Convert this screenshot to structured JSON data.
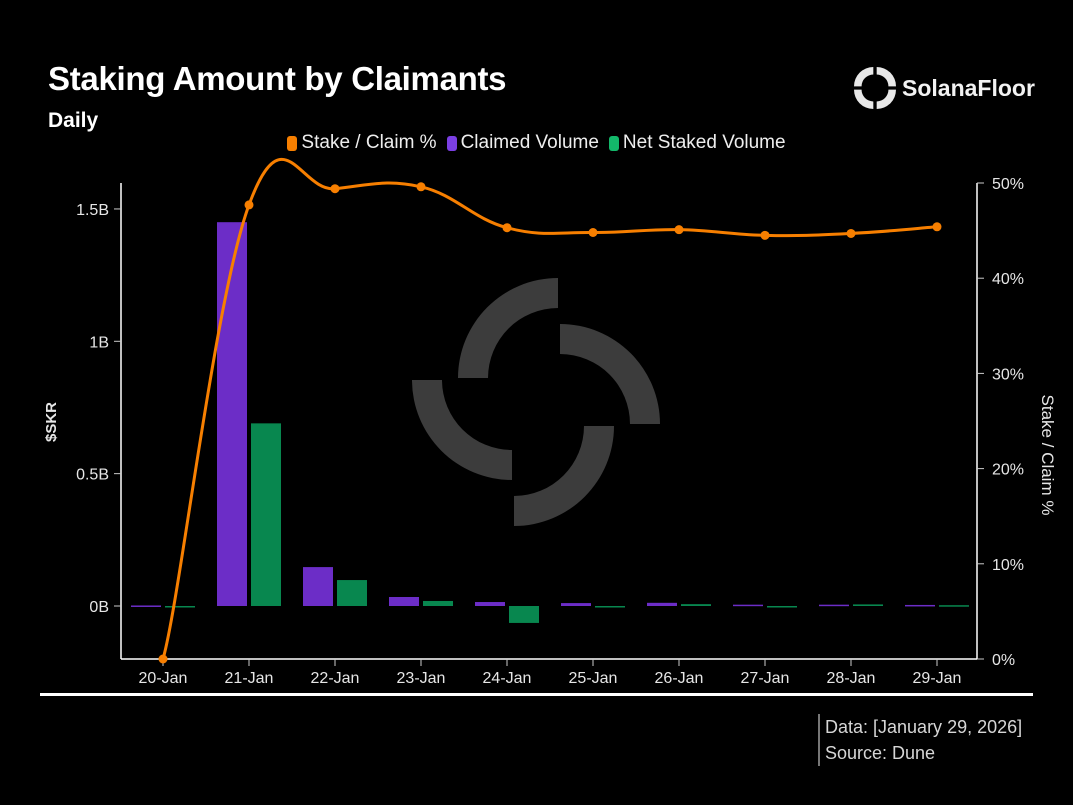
{
  "header": {
    "title": "Staking Amount by Claimants",
    "subtitle": "Daily",
    "brand": "SolanaFloor",
    "brand_icon": "solanafloor-logo-icon"
  },
  "legend": [
    {
      "label": "Stake / Claim %",
      "color": "#F77F00"
    },
    {
      "label": "Claimed Volume",
      "color": "#6C2DC7"
    },
    {
      "label": "Net Staked Volume",
      "color": "#08874F"
    }
  ],
  "footer": {
    "data_line": "Data: [January 29, 2026]",
    "source_line": "Source: Dune"
  },
  "colors": {
    "background": "#000000",
    "line": "#F77F00",
    "claimed": "#6C2DC7",
    "net": "#08874F",
    "watermark": "#3C3C3C"
  },
  "chart_data": {
    "type": "bar",
    "title": "Staking Amount by Claimants",
    "subtitle": "Daily",
    "categories": [
      "20-Jan",
      "21-Jan",
      "22-Jan",
      "23-Jan",
      "24-Jan",
      "25-Jan",
      "26-Jan",
      "27-Jan",
      "28-Jan",
      "29-Jan"
    ],
    "series": [
      {
        "name": "Claimed Volume",
        "type": "bar",
        "axis": "left",
        "unit": "B $SKR",
        "values": [
          0.002,
          1.45,
          0.147,
          0.034,
          0.015,
          0.011,
          0.012,
          0.005,
          0.005,
          0.004
        ]
      },
      {
        "name": "Net Staked Volume",
        "type": "bar",
        "axis": "left",
        "unit": "B $SKR",
        "values": [
          0.0,
          0.69,
          0.098,
          0.019,
          -0.064,
          -0.002,
          0.007,
          -0.003,
          0.006,
          0.003
        ]
      },
      {
        "name": "Stake / Claim %",
        "type": "line",
        "axis": "right",
        "unit": "%",
        "values": [
          0.0,
          47.7,
          49.4,
          49.6,
          45.3,
          44.8,
          45.1,
          44.5,
          44.7,
          45.4
        ]
      }
    ],
    "xlabel": "",
    "ylabel": "$SKR",
    "ylabel_right": "Stake / Claim %",
    "ylim": [
      -0.2,
      1.6
    ],
    "ylim_right": [
      0,
      50
    ],
    "yticks": [
      "0B",
      "0.5B",
      "1B",
      "1.5B"
    ],
    "yticks_right": [
      "0%",
      "10%",
      "20%",
      "30%",
      "40%",
      "50%"
    ],
    "grid": false,
    "legend_position": "top"
  }
}
